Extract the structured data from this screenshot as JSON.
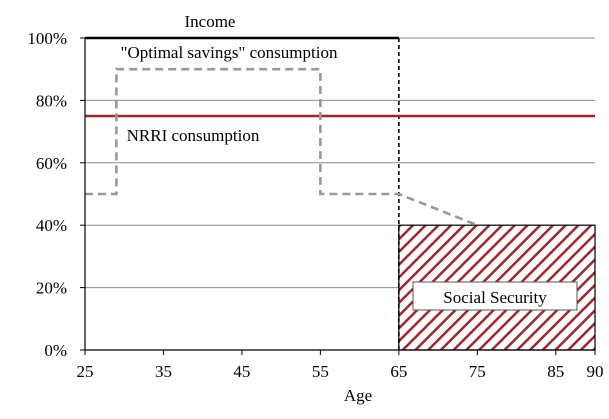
{
  "chart_data": {
    "type": "line",
    "xlabel": "Age",
    "ylabel": "",
    "xlim": [
      25,
      90
    ],
    "ylim": [
      0,
      100
    ],
    "x_ticks": [
      25,
      35,
      45,
      55,
      65,
      75,
      85,
      90
    ],
    "y_ticks": [
      0,
      20,
      40,
      60,
      80,
      100
    ],
    "y_tick_suffix": "%",
    "grid": "horizontal",
    "series": [
      {
        "name": "Income",
        "style": "solid",
        "color": "#000000",
        "points": [
          [
            25,
            100
          ],
          [
            65,
            100
          ],
          [
            65,
            0
          ]
        ]
      },
      {
        "name": "NRRI consumption",
        "style": "solid",
        "color": "#a0262a",
        "points": [
          [
            25,
            75
          ],
          [
            90,
            75
          ]
        ]
      },
      {
        "name": "\"Optimal savings\" consumption",
        "style": "dashed",
        "color": "#999999",
        "points": [
          [
            25,
            50
          ],
          [
            29,
            50
          ],
          [
            29,
            90
          ],
          [
            55,
            90
          ],
          [
            55,
            50
          ],
          [
            65,
            50
          ],
          [
            75,
            40
          ]
        ]
      }
    ],
    "areas": [
      {
        "name": "Social Security",
        "pattern": "red-diagonal-hatch",
        "color": "#a0262a",
        "x_range": [
          65,
          90
        ],
        "value": 40
      }
    ],
    "annotations": [
      {
        "id": "income",
        "text": "Income"
      },
      {
        "id": "optimal",
        "text": "\"Optimal savings\" consumption"
      },
      {
        "id": "nrri",
        "text": "NRRI consumption"
      },
      {
        "id": "social",
        "text": "Social Security"
      }
    ]
  }
}
